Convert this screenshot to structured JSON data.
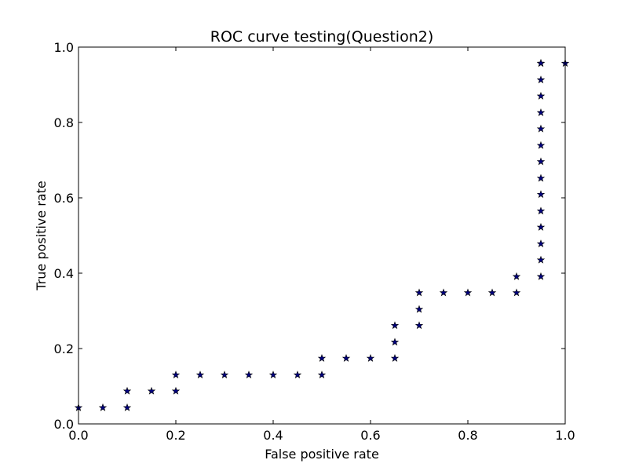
{
  "chart_data": {
    "type": "scatter",
    "title": "ROC curve testing(Question2)",
    "xlabel": "False positive rate",
    "ylabel": "True positive rate",
    "xlim": [
      0,
      1
    ],
    "ylim": [
      0,
      1
    ],
    "xticks": [
      "0.0",
      "0.2",
      "0.4",
      "0.6",
      "0.8",
      "1.0"
    ],
    "yticks": [
      "0.0",
      "0.2",
      "0.4",
      "0.6",
      "0.8",
      "1.0"
    ],
    "grid": false,
    "legend": "none",
    "marker": "star",
    "color": "#00007f",
    "series": [
      {
        "x": [
          0.0,
          0.05,
          0.1,
          0.1,
          0.15,
          0.2,
          0.2,
          0.25,
          0.3,
          0.35,
          0.4,
          0.45,
          0.5,
          0.5,
          0.55,
          0.6,
          0.65,
          0.65,
          0.65,
          0.7,
          0.7,
          0.7,
          0.75,
          0.8,
          0.85,
          0.9,
          0.9,
          0.95,
          0.95,
          0.95,
          0.95,
          0.95,
          0.95,
          0.95,
          0.95,
          0.95,
          0.95,
          0.95,
          0.95,
          0.95,
          0.95,
          0.95,
          1.0
        ],
        "y": [
          0.043,
          0.043,
          0.043,
          0.087,
          0.087,
          0.087,
          0.13,
          0.13,
          0.13,
          0.13,
          0.13,
          0.13,
          0.13,
          0.174,
          0.174,
          0.174,
          0.174,
          0.217,
          0.261,
          0.261,
          0.304,
          0.348,
          0.348,
          0.348,
          0.348,
          0.348,
          0.391,
          0.391,
          0.435,
          0.478,
          0.522,
          0.565,
          0.609,
          0.652,
          0.696,
          0.739,
          0.783,
          0.826,
          0.87,
          0.913,
          0.957,
          0.957,
          0.957
        ]
      }
    ]
  }
}
